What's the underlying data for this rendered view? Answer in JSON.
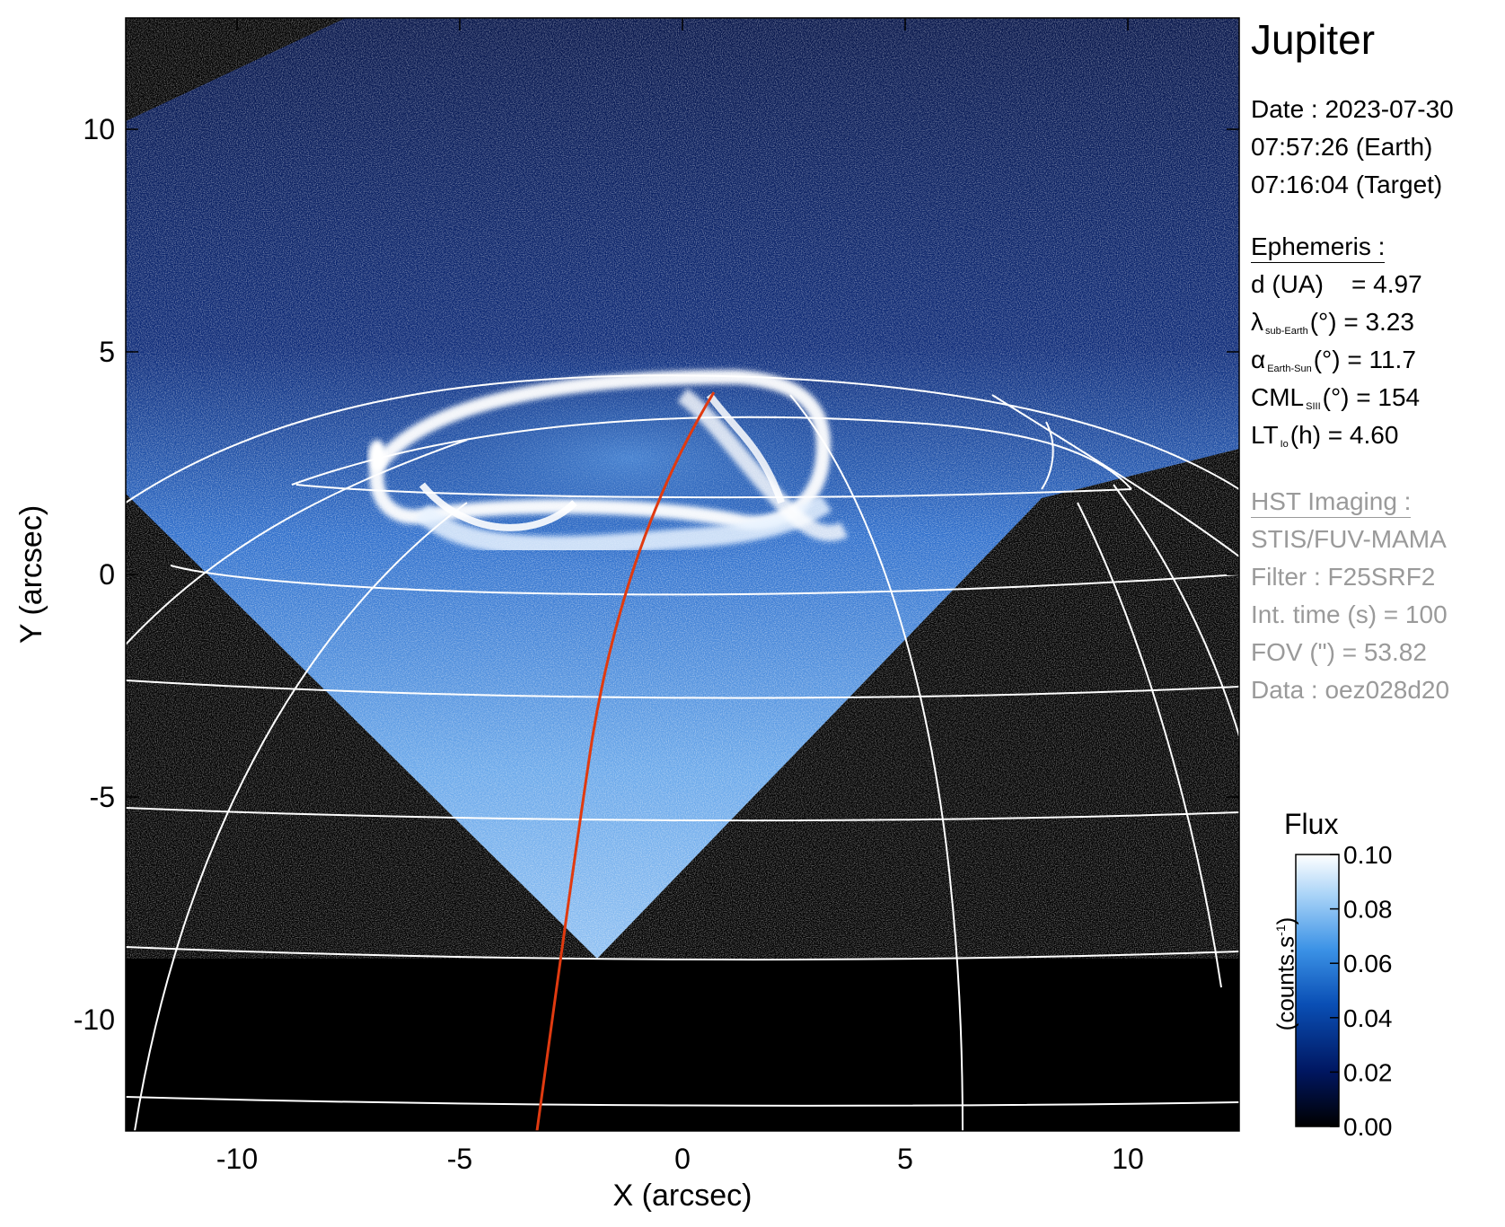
{
  "chart_data": {
    "type": "heatmap",
    "xlabel": "X (arcsec)",
    "ylabel": "Y (arcsec)",
    "xlim": [
      -12.5,
      12.5
    ],
    "ylim": [
      -12.5,
      12.5
    ],
    "xticks": [
      -10,
      -5,
      0,
      5,
      10
    ],
    "yticks": [
      -10,
      -5,
      0,
      5,
      10
    ],
    "colorbar": {
      "title": "Flux",
      "unit_label": "(counts.s",
      "unit_sup": "-1",
      "unit_close": ")",
      "ticks": [
        "0.00",
        "0.02",
        "0.04",
        "0.06",
        "0.08",
        "0.10"
      ],
      "range": [
        0,
        0.1
      ],
      "colormap": [
        "#000000",
        "#001660",
        "#0a4fb5",
        "#3b92e6",
        "#a9d3f7",
        "#ffffff"
      ]
    },
    "grid_color": "#ffffff",
    "trace_color": "#e03a10"
  },
  "info": {
    "title": "Jupiter",
    "date_line": "Date : 2023-07-30",
    "time_earth": "07:57:26 (Earth)",
    "time_target": "07:16:04 (Target)",
    "ephemeris_header": "Ephemeris :",
    "d_label": "d (UA)",
    "d_value": "= 4.97",
    "lambda_symbol": "λ",
    "lambda_sub": "sub-Earth",
    "lambda_rest": "(°) = 3.23",
    "alpha_symbol": "α",
    "alpha_sub": "Earth-Sun",
    "alpha_rest": "(°) = 11.7",
    "cml_symbol": "CML",
    "cml_sub": "SIII",
    "cml_rest": "(°) = 154",
    "lt_symbol": "LT",
    "lt_sub": "Io",
    "lt_rest": "(h) = 4.60",
    "hst_header": "HST Imaging :",
    "instrument": "STIS/FUV-MAMA",
    "filter": "Filter : F25SRF2",
    "int_time": "Int. time (s) = 100",
    "fov": "FOV (\") = 53.82",
    "dataset": "Data : oez028d20"
  }
}
